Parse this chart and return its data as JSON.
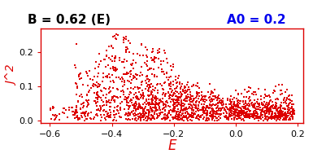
{
  "title_left": "B = 0.62 (E)",
  "title_right": "A0 = 0.2",
  "xlabel": "E",
  "ylabel": "J^2",
  "xlim": [
    -0.63,
    0.22
  ],
  "ylim": [
    -0.008,
    0.27
  ],
  "xticks": [
    -0.6,
    -0.4,
    -0.2,
    0,
    0.2
  ],
  "yticks": [
    0,
    0.1,
    0.2
  ],
  "dot_color": "#dd0000",
  "title_left_color": "#000000",
  "title_right_color": "#0000ee",
  "axis_color": "#dd0000",
  "background_color": "#ffffff",
  "seed": 7,
  "B": 0.62,
  "A0": 0.2
}
